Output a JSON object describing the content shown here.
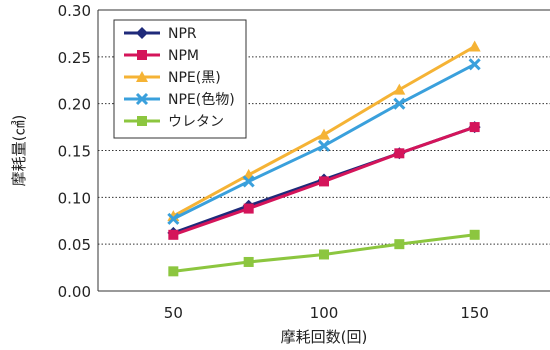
{
  "chart_data": {
    "type": "line",
    "xlabel": "摩耗回数(回)",
    "ylabel": "摩耗量(㎤)",
    "x": [
      50,
      75,
      100,
      125,
      150
    ],
    "x_ticks": [
      50,
      100,
      150
    ],
    "xlim": [
      25,
      175
    ],
    "ylim": [
      0,
      0.3
    ],
    "y_ticks": [
      "0.00",
      "0.05",
      "0.10",
      "0.15",
      "0.20",
      "0.25",
      "0.30"
    ],
    "grid": "horizontal-dotted",
    "legend_position": "top-left",
    "series": [
      {
        "name": "NPR",
        "values": [
          0.062,
          0.091,
          0.119,
          0.147,
          0.175
        ],
        "color": "#1f2a7a",
        "marker": "diamond"
      },
      {
        "name": "NPM",
        "values": [
          0.06,
          0.088,
          0.117,
          0.147,
          0.175
        ],
        "color": "#d4145a",
        "marker": "square"
      },
      {
        "name": "NPE(黒)",
        "values": [
          0.08,
          0.124,
          0.167,
          0.215,
          0.261
        ],
        "color": "#f5b335",
        "marker": "triangle"
      },
      {
        "name": "NPE(色物)",
        "values": [
          0.077,
          0.117,
          0.155,
          0.2,
          0.242
        ],
        "color": "#3aa0dc",
        "marker": "x"
      },
      {
        "name": "ウレタン",
        "values": [
          0.021,
          0.031,
          0.039,
          0.05,
          0.06
        ],
        "color": "#8cc63f",
        "marker": "square"
      }
    ]
  }
}
